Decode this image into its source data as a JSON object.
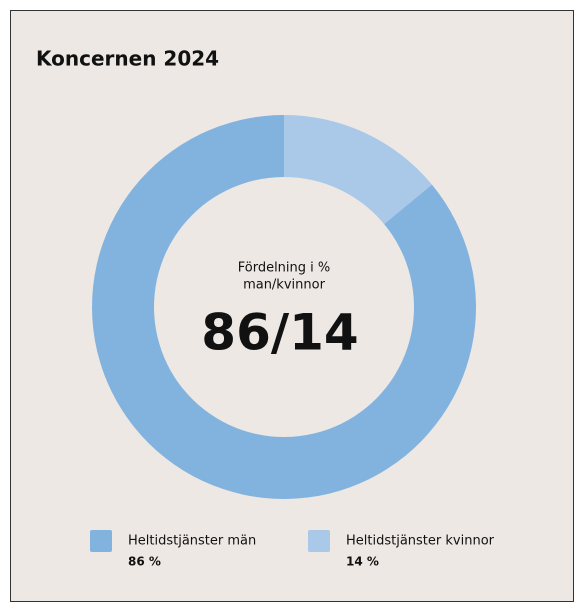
{
  "chart_data": {
    "type": "donut",
    "title": "Koncernen 2024",
    "center_label": [
      "Fördelning i %",
      "man/kvinnor"
    ],
    "center_value": "86/14",
    "categories": [
      "Heltidstjänster män",
      "Heltidstjänster kvinnor"
    ],
    "values": [
      86,
      14
    ],
    "value_labels": [
      "86 %",
      "14 %"
    ],
    "colors": [
      "#82b3df",
      "#aac8e8"
    ]
  }
}
